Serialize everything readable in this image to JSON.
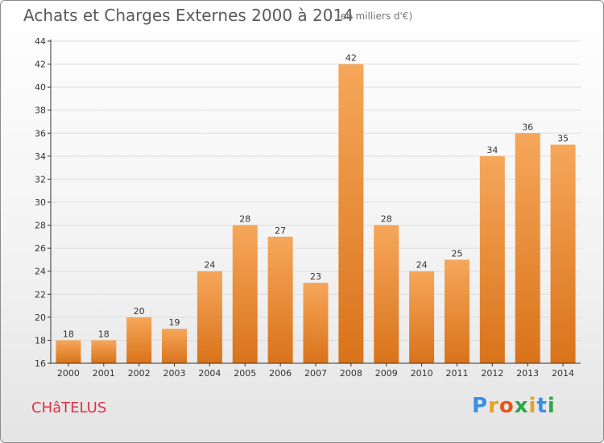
{
  "header": {
    "title": "Achats et Charges Externes 2000 à 2014",
    "unit": "(en milliers d'€)"
  },
  "footer": {
    "commune": "CHâTELUS",
    "logo": "Proxiti"
  },
  "colors": {
    "bar_top": "#f6a75a",
    "bar_bottom": "#d9731a",
    "axis": "#333333",
    "grid": "#dddddd",
    "commune": "#e0304a"
  },
  "chart_data": {
    "type": "bar",
    "title": "Achats et Charges Externes 2000 à 2014",
    "subtitle": "(en milliers d'€)",
    "xlabel": "",
    "ylabel": "",
    "categories": [
      "2000",
      "2001",
      "2002",
      "2003",
      "2004",
      "2005",
      "2006",
      "2007",
      "2008",
      "2009",
      "2010",
      "2011",
      "2012",
      "2013",
      "2014"
    ],
    "values": [
      18,
      18,
      20,
      19,
      24,
      28,
      27,
      23,
      42,
      28,
      24,
      25,
      34,
      36,
      35
    ],
    "ylim": [
      16,
      44
    ],
    "yticks": [
      16,
      18,
      20,
      22,
      24,
      26,
      28,
      30,
      32,
      34,
      36,
      38,
      40,
      42,
      44
    ],
    "grid": true,
    "data_labels": true
  }
}
